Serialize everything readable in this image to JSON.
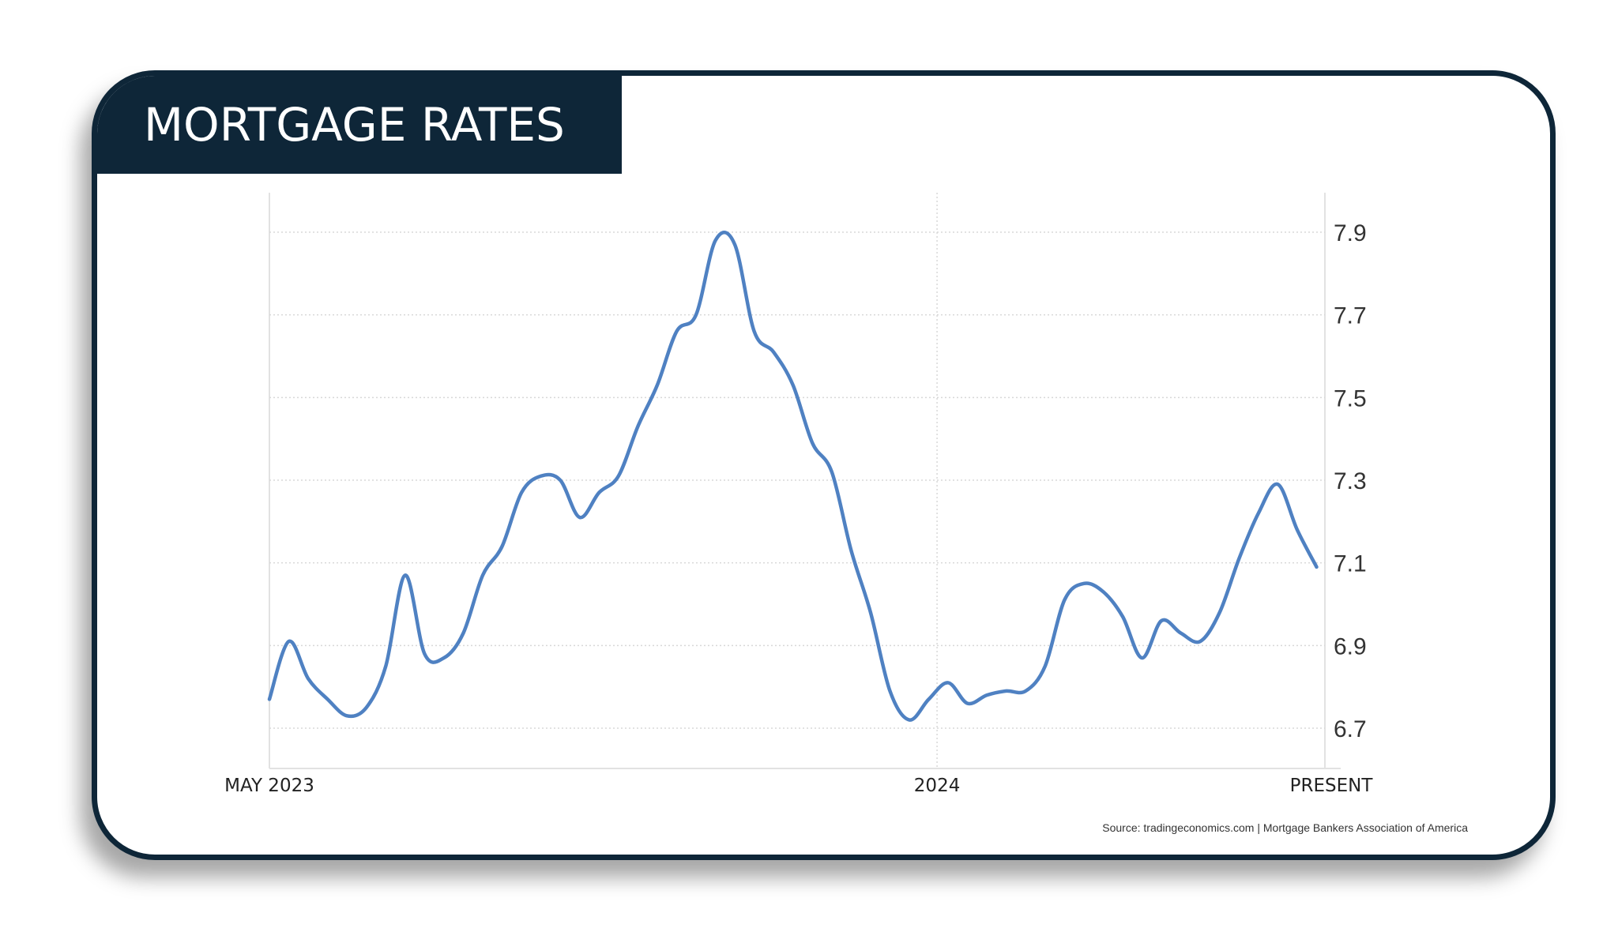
{
  "title": "MORTGAGE RATES",
  "source": "Source: tradingeconomics.com | Mortgage Bankers Association of America",
  "chart_data": {
    "type": "line",
    "title": "MORTGAGE RATES",
    "xlabel": "",
    "ylabel": "",
    "color": "#4f81c2",
    "grid": true,
    "y_axis_side": "right",
    "ylim": [
      6.62,
      7.98
    ],
    "yticks": [
      6.7,
      6.9,
      7.1,
      7.3,
      7.5,
      7.7,
      7.9
    ],
    "ytick_labels": [
      "6.7",
      "6.9",
      "7.1",
      "7.3",
      "7.5",
      "7.7",
      "7.9"
    ],
    "xlim": [
      "2023-05-05",
      "2024-05-20"
    ],
    "xticks": [
      {
        "date": "2023-05-05",
        "label": "MAY 2023"
      },
      {
        "date": "2024-01-01",
        "label": "2024"
      },
      {
        "date": "2024-05-20",
        "label": "PRESENT"
      }
    ],
    "x": [
      "2023-05-05",
      "2023-05-12",
      "2023-05-19",
      "2023-05-26",
      "2023-06-02",
      "2023-06-09",
      "2023-06-16",
      "2023-06-23",
      "2023-06-30",
      "2023-07-07",
      "2023-07-14",
      "2023-07-21",
      "2023-07-28",
      "2023-08-04",
      "2023-08-11",
      "2023-08-18",
      "2023-08-25",
      "2023-09-01",
      "2023-09-08",
      "2023-09-15",
      "2023-09-22",
      "2023-09-29",
      "2023-10-06",
      "2023-10-13",
      "2023-10-20",
      "2023-10-27",
      "2023-11-03",
      "2023-11-10",
      "2023-11-17",
      "2023-11-24",
      "2023-12-01",
      "2023-12-08",
      "2023-12-15",
      "2023-12-22",
      "2023-12-29",
      "2024-01-05",
      "2024-01-12",
      "2024-01-19",
      "2024-01-26",
      "2024-02-02",
      "2024-02-09",
      "2024-02-16",
      "2024-02-23",
      "2024-03-01",
      "2024-03-08",
      "2024-03-15",
      "2024-03-22",
      "2024-03-29",
      "2024-04-05",
      "2024-04-12",
      "2024-04-19",
      "2024-04-26",
      "2024-05-03",
      "2024-05-10",
      "2024-05-17"
    ],
    "values": [
      6.77,
      6.91,
      6.82,
      6.77,
      6.73,
      6.75,
      6.85,
      7.07,
      6.88,
      6.87,
      6.93,
      7.07,
      7.14,
      7.27,
      7.31,
      7.3,
      7.21,
      7.27,
      7.31,
      7.43,
      7.53,
      7.66,
      7.7,
      7.88,
      7.87,
      7.66,
      7.61,
      7.53,
      7.39,
      7.32,
      7.13,
      6.98,
      6.79,
      6.72,
      6.77,
      6.81,
      6.76,
      6.78,
      6.79,
      6.79,
      6.85,
      7.01,
      7.05,
      7.03,
      6.97,
      6.87,
      6.96,
      6.93,
      6.91,
      6.98,
      7.11,
      7.22,
      7.29,
      7.18,
      7.09
    ]
  }
}
